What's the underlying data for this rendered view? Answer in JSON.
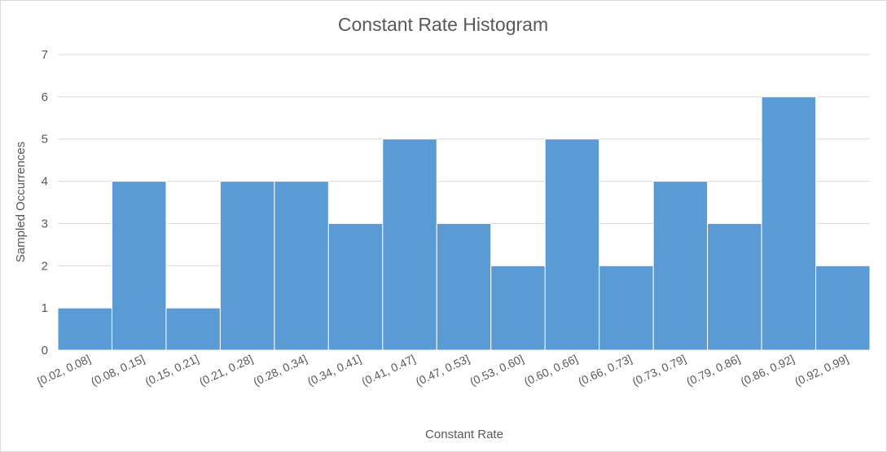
{
  "chart_data": {
    "type": "bar",
    "title": "Constant Rate Histogram",
    "xlabel": "Constant Rate",
    "ylabel": "Sampled Occurrences",
    "ylim": [
      0,
      7
    ],
    "yticks": [
      0,
      1,
      2,
      3,
      4,
      5,
      6,
      7
    ],
    "grid": true,
    "legend": "none",
    "bar_color": "#5b9bd5",
    "categories": [
      "[0.02, 0.08]",
      "(0.08, 0.15]",
      "(0.15, 0.21]",
      "(0.21, 0.28]",
      "(0.28, 0.34]",
      "(0.34, 0.41]",
      "(0.41, 0.47]",
      "(0.47, 0.53]",
      "(0.53, 0.60]",
      "(0.60, 0.66]",
      "(0.66, 0.73]",
      "(0.73, 0.79]",
      "(0.79, 0.86]",
      "(0.86, 0.92]",
      "(0.92, 0.99]"
    ],
    "values": [
      1,
      4,
      1,
      4,
      4,
      3,
      5,
      3,
      2,
      5,
      2,
      4,
      3,
      6,
      2
    ]
  }
}
